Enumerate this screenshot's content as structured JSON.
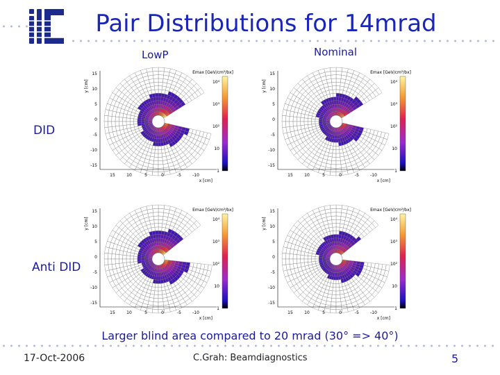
{
  "slide": {
    "title": "Pair Distributions for 14mrad",
    "column_headers": [
      "LowP",
      "Nominal"
    ],
    "row_labels": [
      "DID",
      "Anti DID"
    ],
    "caption": "Larger blind area compared to 20 mrad (30° => 40°)",
    "footer": {
      "date": "17-Oct-2006",
      "author": "C.Grah: Beamdiagnostics",
      "page": "5"
    }
  },
  "plots": {
    "y_axis_label": "y [cm]",
    "x_axis_label": "x [cm]",
    "z_axis_label": "Emax [GeV/cm²/bx]",
    "y_ticks": [
      "15",
      "10",
      "5",
      "0",
      "-5",
      "-10",
      "-15"
    ],
    "x_ticks": [
      "15",
      "10",
      "5",
      "0",
      "-5",
      "-10"
    ],
    "z_ticks": [
      "10⁴",
      "10³",
      "10²",
      "10",
      "1"
    ],
    "colors": {
      "title": "#1a26b8",
      "text": "#1a1aa0",
      "dots": "#aeb8d8"
    }
  }
}
